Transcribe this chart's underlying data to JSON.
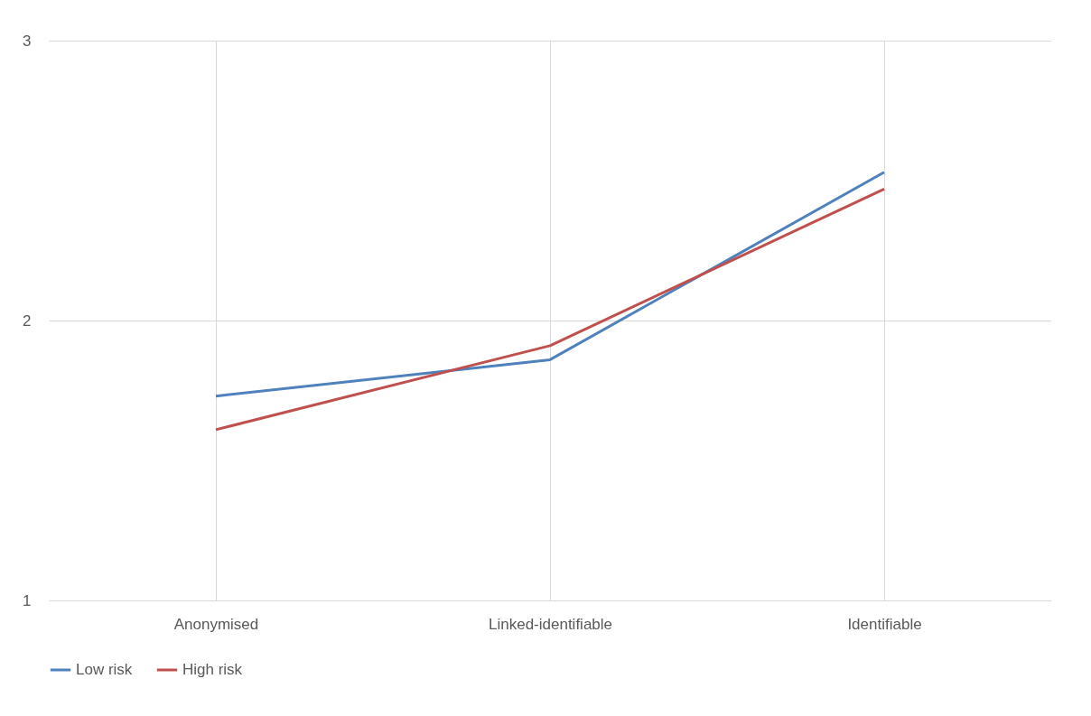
{
  "chart_data": {
    "type": "line",
    "categories": [
      "Anonymised",
      "Linked-identifiable",
      "Identifiable"
    ],
    "series": [
      {
        "name": "Low risk",
        "color": "#4f81bd",
        "values": [
          1.73,
          1.86,
          2.53
        ]
      },
      {
        "name": "High risk",
        "color": "#c0504d",
        "values": [
          1.61,
          1.91,
          2.47
        ]
      }
    ],
    "ylim": [
      1,
      3
    ],
    "yticks": [
      1,
      2,
      3
    ],
    "grid": true,
    "legend": "bottom",
    "marker": "none",
    "line_style": "solid"
  }
}
